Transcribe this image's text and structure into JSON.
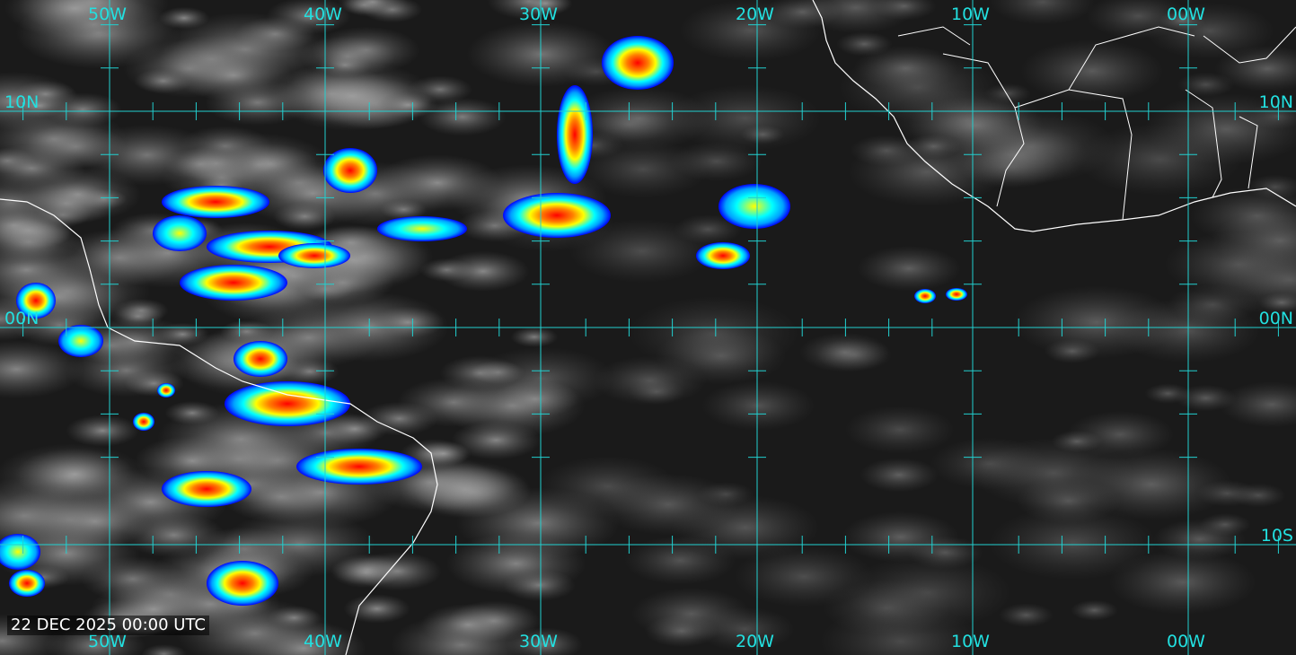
{
  "timestamp": "22 DEC 2025 00:00 UTC",
  "grid": {
    "color": "#22d0d0",
    "longitudes": [
      "50W",
      "40W",
      "30W",
      "20W",
      "10W",
      "00W"
    ],
    "latitudes_left": [
      "10N",
      "00N"
    ],
    "latitudes_right": [
      "10N",
      "00N",
      "10S"
    ]
  },
  "colors": {
    "background": "#1a1a1a",
    "cloud": "#9a9a9a",
    "convection_scale": [
      "#0000ff",
      "#00a0ff",
      "#00ffff",
      "#ffff00",
      "#ff8000",
      "#ff0000"
    ],
    "coastline": "#ffffff"
  }
}
